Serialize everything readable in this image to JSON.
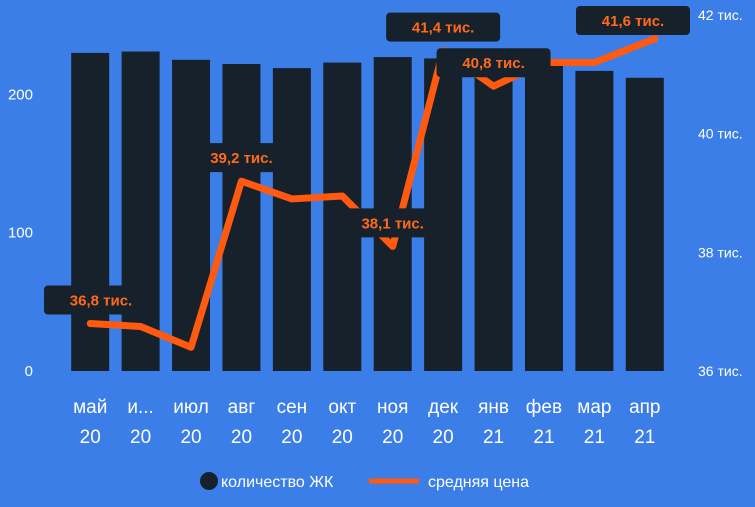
{
  "chart_data": {
    "type": "bar",
    "categories": [
      [
        "май",
        "20"
      ],
      [
        "и...",
        "20"
      ],
      [
        "июл",
        "20"
      ],
      [
        "авг",
        "20"
      ],
      [
        "сен",
        "20"
      ],
      [
        "окт",
        "20"
      ],
      [
        "ноя",
        "20"
      ],
      [
        "дек",
        "20"
      ],
      [
        "янв",
        "21"
      ],
      [
        "фев",
        "21"
      ],
      [
        "мар",
        "21"
      ],
      [
        "апр",
        "21"
      ]
    ],
    "series": [
      {
        "name": "количество ЖК",
        "type": "bar",
        "axis": "left",
        "color": "#17212b",
        "values": [
          230,
          231,
          225,
          222,
          219,
          223,
          227,
          226,
          224,
          222,
          217,
          212
        ]
      },
      {
        "name": "средняя цена",
        "type": "line",
        "axis": "right",
        "color": "#ff5a0f",
        "values": [
          36.8,
          36.75,
          36.4,
          39.2,
          38.9,
          38.95,
          38.1,
          41.4,
          40.8,
          41.2,
          41.2,
          41.6
        ]
      }
    ],
    "left_axis": {
      "ylim": [
        0,
        230
      ],
      "ticks": [
        0,
        100,
        200
      ],
      "tick_labels": [
        "0",
        "100",
        "200"
      ]
    },
    "right_axis": {
      "ylim": [
        36,
        42
      ],
      "ticks": [
        36,
        38,
        40,
        42
      ],
      "tick_labels": [
        "36 тис.",
        "38 тис.",
        "40 тис.",
        "42 тис."
      ]
    },
    "data_labels": [
      {
        "index": 0,
        "text": "36,8 тис."
      },
      {
        "index": 3,
        "text": "39,2 тис."
      },
      {
        "index": 6,
        "text": "38,1 тис."
      },
      {
        "index": 7,
        "text": "41,4 тис."
      },
      {
        "index": 8,
        "text": "40,8 тис."
      },
      {
        "index": 11,
        "text": "41,6 тис."
      }
    ],
    "legend": {
      "placement": "bottom",
      "items": [
        "количество ЖК",
        "средняя цена"
      ]
    },
    "grid": false,
    "title": "",
    "xlabel": "",
    "ylabel": ""
  }
}
